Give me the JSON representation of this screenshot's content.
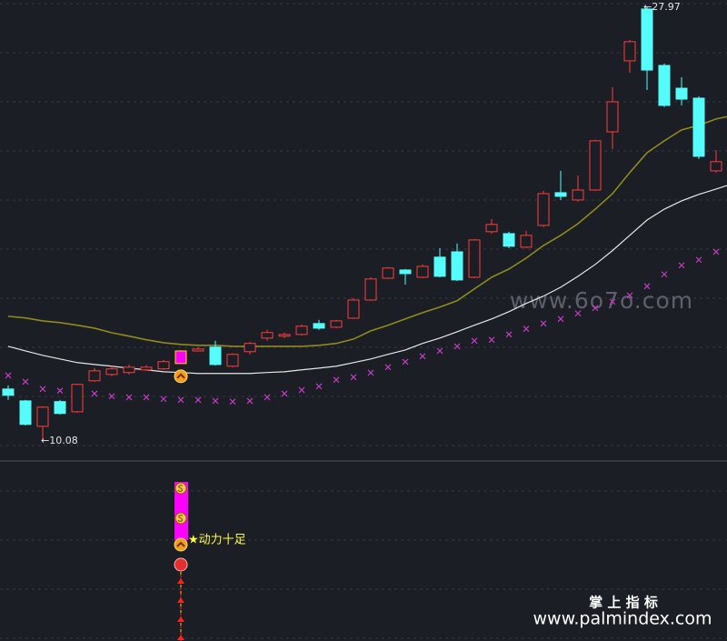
{
  "chart_data": {
    "type": "candlestick",
    "up_color": "#ff3c3c",
    "down_color": "#54fcfc",
    "ylim": [
      9.25,
      28.27
    ],
    "grid": true,
    "open": [
      12.22,
      11.73,
      10.68,
      11.7,
      11.28,
      12.56,
      12.82,
      12.9,
      13.01,
      13.05,
      13.27,
      13.79,
      13.95,
      13.16,
      13.76,
      14.32,
      14.4,
      14.47,
      14.92,
      14.77,
      15.14,
      15.89,
      16.79,
      17.13,
      16.83,
      17.66,
      17.88,
      16.83,
      18.71,
      18.63,
      18.07,
      18.97,
      20.32,
      20.02,
      20.43,
      22.83,
      25.76,
      27.9,
      25.57,
      24.63,
      24.22,
      21.22,
      21.52
    ],
    "high": [
      12.37,
      11.77,
      11.51,
      11.77,
      12.44,
      13.08,
      13.16,
      13.23,
      13.2,
      13.42,
      13.82,
      13.95,
      14.21,
      13.69,
      14.17,
      14.66,
      14.55,
      14.88,
      15.07,
      15.07,
      15.97,
      16.83,
      17.25,
      17.17,
      17.36,
      18.03,
      18.22,
      18.41,
      19.23,
      18.71,
      18.75,
      20.4,
      21.22,
      21.03,
      22.5,
      24.67,
      26.62,
      27.97,
      25.65,
      25.08,
      24.3,
      22.08,
      22.46
    ],
    "low": [
      11.77,
      10.72,
      10.08,
      11.17,
      11.24,
      12.52,
      12.74,
      12.82,
      12.97,
      13.01,
      13.27,
      13.76,
      13.19,
      13.12,
      13.65,
      14.21,
      14.32,
      14.43,
      14.66,
      14.73,
      15.11,
      15.86,
      16.76,
      16.53,
      16.79,
      16.83,
      16.68,
      16.79,
      18.63,
      18.03,
      18.03,
      18.9,
      20.02,
      19.95,
      20.4,
      22.12,
      25.27,
      24.56,
      23.85,
      23.92,
      21.71,
      21.15,
      21.33
    ],
    "close": [
      11.96,
      10.76,
      11.47,
      11.21,
      12.41,
      12.97,
      13.05,
      13.12,
      13.12,
      13.35,
      13.79,
      13.87,
      13.23,
      13.65,
      14.1,
      14.55,
      14.47,
      14.81,
      14.73,
      15.03,
      15.89,
      16.76,
      17.21,
      16.98,
      17.28,
      16.87,
      16.72,
      18.37,
      19.01,
      18.11,
      18.56,
      20.28,
      20.17,
      20.43,
      22.46,
      24.07,
      26.55,
      25.38,
      23.92,
      24.18,
      21.82,
      21.6,
      22.35
    ],
    "overlays": [
      {
        "color": "#8f8a1c",
        "values": [
          15.22,
          15.15,
          15.03,
          14.96,
          14.85,
          14.73,
          14.54,
          14.4,
          14.25,
          14.13,
          14.06,
          14.02,
          14.02,
          13.98,
          13.98,
          13.98,
          13.98,
          13.98,
          14.02,
          14.1,
          14.28,
          14.62,
          14.85,
          15.11,
          15.37,
          15.6,
          15.86,
          16.35,
          16.83,
          17.17,
          17.62,
          18.14,
          18.56,
          19.04,
          19.64,
          20.28,
          21.15,
          21.97,
          22.46,
          22.91,
          23.1,
          23.36,
          23.51
        ]
      },
      {
        "color": "#e6e6e6",
        "values": [
          13.98,
          13.79,
          13.61,
          13.46,
          13.31,
          13.23,
          13.16,
          13.08,
          13.01,
          12.93,
          12.9,
          12.86,
          12.86,
          12.86,
          12.86,
          12.9,
          12.93,
          13.01,
          13.08,
          13.16,
          13.31,
          13.46,
          13.65,
          13.83,
          14.1,
          14.32,
          14.58,
          14.85,
          15.11,
          15.41,
          15.75,
          16.05,
          16.42,
          16.87,
          17.36,
          17.93,
          18.56,
          19.19,
          19.64,
          19.98,
          20.25,
          20.47,
          20.7
        ]
      }
    ],
    "sar": {
      "color": "#c23cc2",
      "values": [
        12.78,
        12.52,
        12.22,
        12.15,
        12.11,
        12.03,
        11.92,
        11.88,
        11.88,
        11.81,
        11.77,
        11.77,
        11.73,
        11.7,
        11.73,
        11.88,
        12.03,
        12.18,
        12.33,
        12.6,
        12.71,
        12.89,
        13.12,
        13.34,
        13.57,
        13.79,
        13.98,
        14.21,
        14.25,
        14.47,
        14.7,
        14.92,
        15.11,
        15.34,
        15.56,
        15.82,
        16.08,
        16.46,
        16.95,
        17.32,
        17.55,
        17.88,
        null
      ]
    },
    "highlight": {
      "index": 10,
      "color": "#ff00ff"
    },
    "max_label": {
      "value": 27.97,
      "label": "←27.97"
    },
    "min_label": {
      "value": 10.08,
      "label": "←10.08"
    },
    "signal_text": "★动力十足",
    "watermark": "www.6o7o.com",
    "footer": [
      "掌 上 指 标",
      "www.palmindex.com"
    ]
  }
}
